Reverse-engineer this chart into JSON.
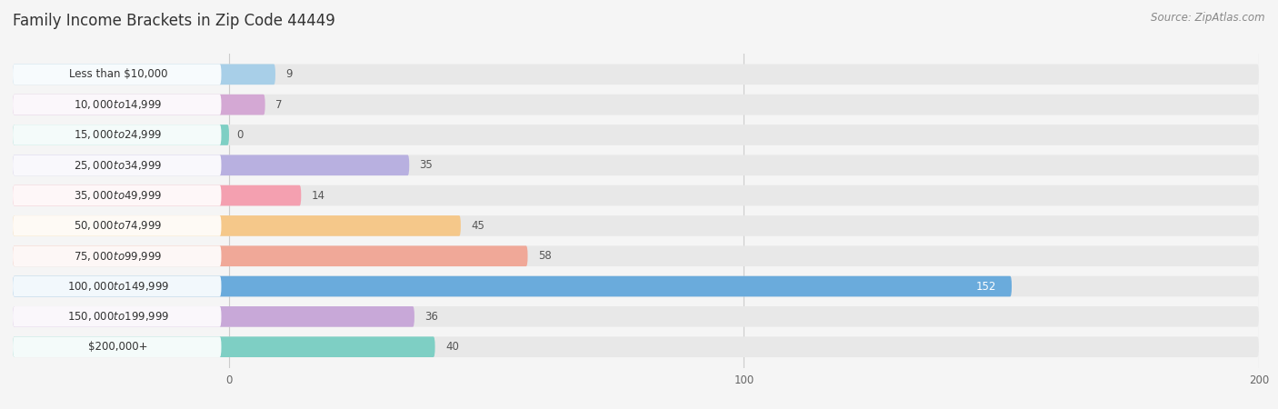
{
  "title": "Family Income Brackets in Zip Code 44449",
  "source": "Source: ZipAtlas.com",
  "categories": [
    "Less than $10,000",
    "$10,000 to $14,999",
    "$15,000 to $24,999",
    "$25,000 to $34,999",
    "$35,000 to $49,999",
    "$50,000 to $74,999",
    "$75,000 to $99,999",
    "$100,000 to $149,999",
    "$150,000 to $199,999",
    "$200,000+"
  ],
  "values": [
    9,
    7,
    0,
    35,
    14,
    45,
    58,
    152,
    36,
    40
  ],
  "bar_colors": [
    "#a8cfe8",
    "#d4a8d4",
    "#7ecfc4",
    "#b8b0e0",
    "#f4a0b0",
    "#f5c88a",
    "#f0a898",
    "#6aabdc",
    "#c8a8d8",
    "#7ecfc4"
  ],
  "xlim_data": [
    0,
    200
  ],
  "xticks": [
    0,
    100,
    200
  ],
  "background_color": "#f5f5f5",
  "bar_bg_color": "#e8e8e8",
  "label_bg_color": "#ffffff",
  "title_fontsize": 12,
  "label_fontsize": 8.5,
  "value_fontsize": 8.5,
  "source_fontsize": 8.5
}
